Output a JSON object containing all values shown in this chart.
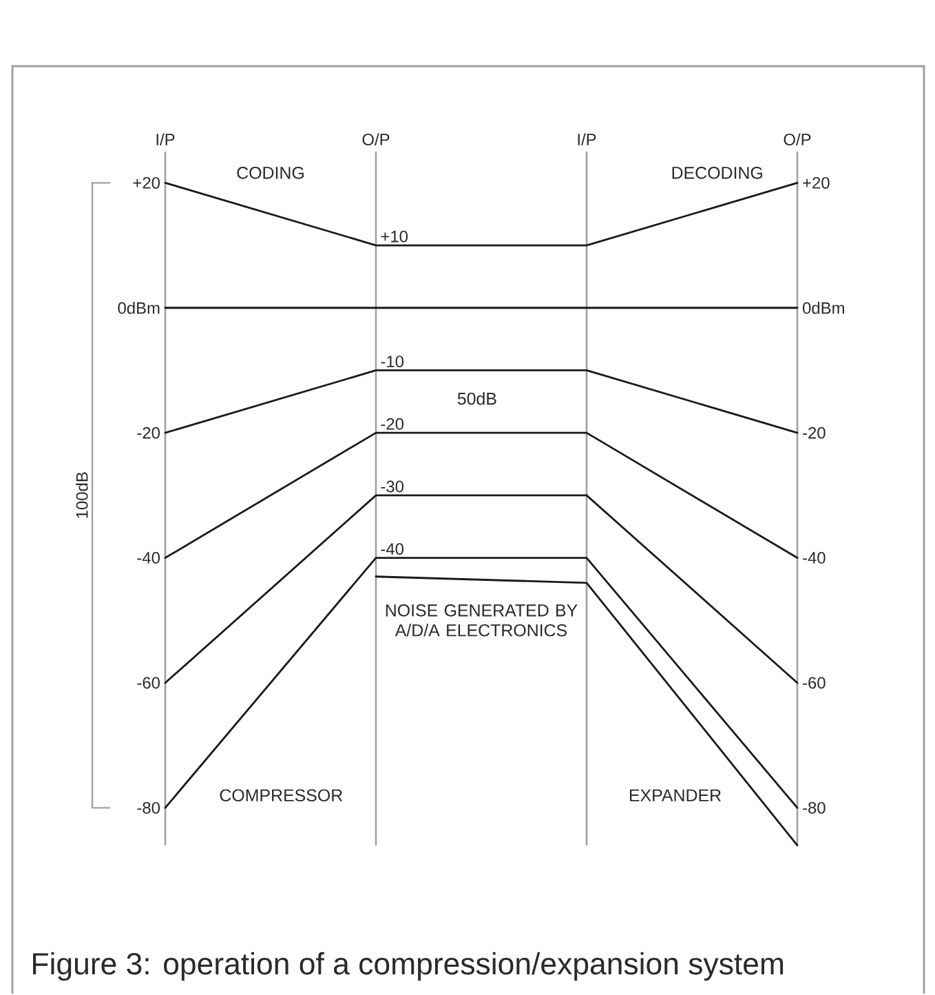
{
  "chart_data": {
    "type": "line",
    "title": "Figure 3: operation of a compression/expansion system",
    "categories": [
      "I/P",
      "O/P",
      "I/P",
      "O/P"
    ],
    "ylim": [
      -86,
      25
    ],
    "yticks": [
      {
        "value": 20,
        "label": "+20"
      },
      {
        "value": 0,
        "label": "0dBm"
      },
      -20,
      -40,
      -60,
      -80
    ],
    "y2lim": [
      -86,
      25
    ],
    "y2ticks": [
      {
        "value": 20,
        "label": "+20"
      },
      {
        "value": 0,
        "label": "0dBm"
      },
      -20,
      -40,
      -60,
      -80
    ],
    "grid": "x",
    "marker": "none",
    "line_style": "solid",
    "series": [
      {
        "color": "#1a1a1a",
        "values": [
          20,
          10,
          10,
          20
        ],
        "value_labels": [
          null,
          "+10",
          null,
          null
        ]
      },
      {
        "color": "#1a1a1a",
        "values": [
          0,
          0,
          0,
          0
        ]
      },
      {
        "color": "#1a1a1a",
        "values": [
          -20,
          -10,
          -10,
          -20
        ],
        "value_labels": [
          null,
          "-10",
          null,
          null
        ]
      },
      {
        "color": "#1a1a1a",
        "values": [
          -40,
          -20,
          -20,
          -40
        ],
        "value_labels": [
          null,
          "-20",
          null,
          null
        ]
      },
      {
        "color": "#1a1a1a",
        "values": [
          -60,
          -30,
          -30,
          -60
        ],
        "value_labels": [
          null,
          "-30",
          null,
          null
        ]
      },
      {
        "color": "#1a1a1a",
        "values": [
          -80,
          -40,
          -40,
          -80
        ],
        "value_labels": [
          null,
          "-40",
          null,
          null
        ]
      },
      {
        "color": "#1a1a1a",
        "values": [
          null,
          -43,
          -44,
          -86
        ]
      }
    ],
    "annotations": [
      "CODING",
      "DECODING",
      "50dB",
      "COMPRESSOR",
      "EXPANDER",
      "NOISE GENERATED BY A/D/A ELECTRONICS",
      "100dB"
    ]
  }
}
